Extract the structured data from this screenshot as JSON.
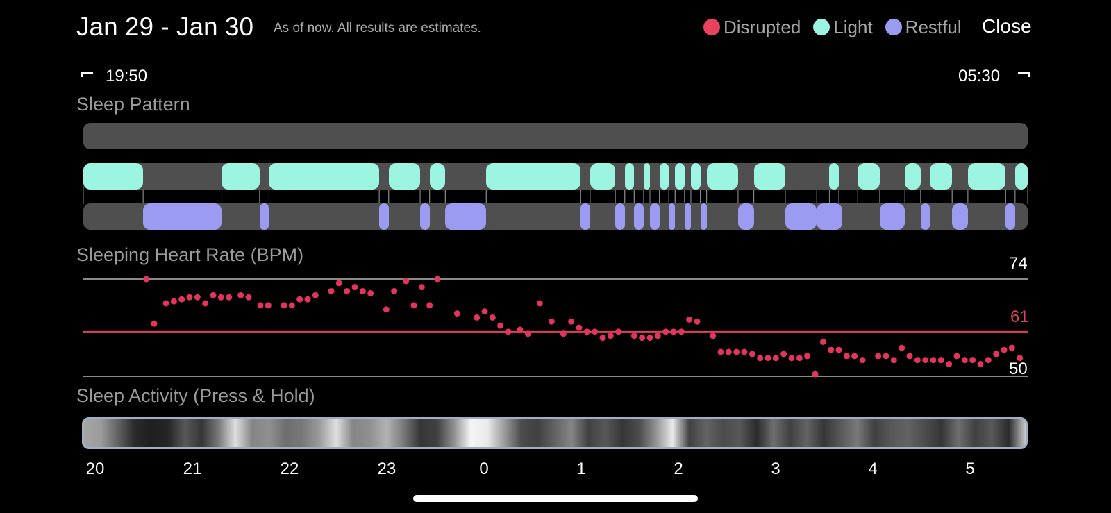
{
  "header": {
    "title": "Jan 29 - Jan 30",
    "subtitle": "As of now. All results are estimates.",
    "close_label": "Close"
  },
  "legend": [
    {
      "label": "Disrupted",
      "color": "#e9415e"
    },
    {
      "label": "Light",
      "color": "#9cf5e1"
    },
    {
      "label": "Restful",
      "color": "#9b9cf1"
    }
  ],
  "time_range": {
    "start": "19:50",
    "end": "05:30"
  },
  "sleep_pattern": {
    "title": "Sleep Pattern",
    "stages": [
      "disrupted",
      "light",
      "restful"
    ],
    "segments_minutes": [
      {
        "stage": "light",
        "start": 0,
        "end": 19
      },
      {
        "stage": "restful",
        "start": 19,
        "end": 44
      },
      {
        "stage": "light",
        "start": 44,
        "end": 56
      },
      {
        "stage": "restful",
        "start": 56,
        "end": 59
      },
      {
        "stage": "light",
        "start": 59,
        "end": 94
      },
      {
        "stage": "restful",
        "start": 94,
        "end": 97
      },
      {
        "stage": "light",
        "start": 97,
        "end": 107
      },
      {
        "stage": "restful",
        "start": 107,
        "end": 110
      },
      {
        "stage": "light",
        "start": 110,
        "end": 115
      },
      {
        "stage": "restful",
        "start": 115,
        "end": 128
      },
      {
        "stage": "light",
        "start": 128,
        "end": 158
      },
      {
        "stage": "restful",
        "start": 158,
        "end": 161
      },
      {
        "stage": "light",
        "start": 161,
        "end": 169
      },
      {
        "stage": "restful",
        "start": 169,
        "end": 172
      },
      {
        "stage": "light",
        "start": 172,
        "end": 175
      },
      {
        "stage": "restful",
        "start": 175,
        "end": 178
      },
      {
        "stage": "light",
        "start": 178,
        "end": 180
      },
      {
        "stage": "restful",
        "start": 180,
        "end": 183
      },
      {
        "stage": "light",
        "start": 183,
        "end": 186
      },
      {
        "stage": "restful",
        "start": 186,
        "end": 188
      },
      {
        "stage": "light",
        "start": 188,
        "end": 191
      },
      {
        "stage": "restful",
        "start": 191,
        "end": 193
      },
      {
        "stage": "light",
        "start": 193,
        "end": 196
      },
      {
        "stage": "restful",
        "start": 196,
        "end": 198
      },
      {
        "stage": "light",
        "start": 198,
        "end": 208
      },
      {
        "stage": "restful",
        "start": 208,
        "end": 213
      },
      {
        "stage": "light",
        "start": 213,
        "end": 223
      },
      {
        "stage": "restful",
        "start": 223,
        "end": 233
      },
      {
        "stage": "restful",
        "start": 233,
        "end": 241
      },
      {
        "stage": "light",
        "start": 237,
        "end": 240
      },
      {
        "stage": "light",
        "start": 246,
        "end": 253
      },
      {
        "stage": "restful",
        "start": 253,
        "end": 261
      },
      {
        "stage": "light",
        "start": 261,
        "end": 266
      },
      {
        "stage": "restful",
        "start": 266,
        "end": 269
      },
      {
        "stage": "light",
        "start": 269,
        "end": 276
      },
      {
        "stage": "restful",
        "start": 276,
        "end": 281
      },
      {
        "stage": "light",
        "start": 281,
        "end": 293
      },
      {
        "stage": "restful",
        "start": 293,
        "end": 296
      },
      {
        "stage": "light",
        "start": 296,
        "end": 300
      }
    ]
  },
  "heart_rate": {
    "title": "Sleeping Heart Rate (BPM)",
    "max_label": "74",
    "avg_label": "61",
    "min_label": "50",
    "colors": {
      "dot": "#e3345a",
      "avg_line": "#e0415e",
      "grid": "#8a8a8a"
    },
    "ylim": [
      50,
      74
    ],
    "points_minutes_bpm": [
      [
        16,
        74
      ],
      [
        18,
        63
      ],
      [
        21,
        68
      ],
      [
        23,
        68.5
      ],
      [
        25,
        69
      ],
      [
        27,
        69.5
      ],
      [
        29,
        69.5
      ],
      [
        31,
        68
      ],
      [
        33,
        70
      ],
      [
        35,
        69.5
      ],
      [
        37,
        69.5
      ],
      [
        40,
        70
      ],
      [
        42,
        69.5
      ],
      [
        45,
        67.5
      ],
      [
        47,
        67.5
      ],
      [
        51,
        67.5
      ],
      [
        53,
        67.5
      ],
      [
        55,
        69
      ],
      [
        57,
        69
      ],
      [
        59,
        70
      ],
      [
        63,
        71
      ],
      [
        65,
        73
      ],
      [
        67,
        71
      ],
      [
        69,
        72
      ],
      [
        71,
        71
      ],
      [
        73,
        70.5
      ],
      [
        77,
        66.5
      ],
      [
        79,
        71
      ],
      [
        82,
        73.5
      ],
      [
        84,
        67.5
      ],
      [
        86,
        72
      ],
      [
        88,
        67.5
      ],
      [
        90,
        74
      ],
      [
        95,
        65.5
      ],
      [
        100,
        64.5
      ],
      [
        102,
        66
      ],
      [
        104,
        64.5
      ],
      [
        106,
        62.5
      ],
      [
        108,
        61
      ],
      [
        111,
        61.5
      ],
      [
        113,
        60.5
      ],
      [
        116,
        68
      ],
      [
        119,
        63.5
      ],
      [
        122,
        60.5
      ],
      [
        124,
        63.5
      ],
      [
        126,
        62
      ],
      [
        128,
        61
      ],
      [
        130,
        61
      ],
      [
        132,
        59.5
      ],
      [
        134,
        60
      ],
      [
        136,
        61
      ],
      [
        140,
        60
      ],
      [
        142,
        59.5
      ],
      [
        144,
        59.5
      ],
      [
        146,
        60
      ],
      [
        148,
        61
      ],
      [
        150,
        61
      ],
      [
        152,
        61
      ],
      [
        154,
        64
      ],
      [
        156,
        63.5
      ],
      [
        160,
        60
      ],
      [
        162,
        56
      ],
      [
        164,
        56
      ],
      [
        166,
        56
      ],
      [
        168,
        56
      ],
      [
        170,
        55.5
      ],
      [
        172,
        54.5
      ],
      [
        174,
        54.5
      ],
      [
        176,
        54.5
      ],
      [
        178,
        55.5
      ],
      [
        180,
        54.5
      ],
      [
        182,
        54.5
      ],
      [
        184,
        55
      ],
      [
        186,
        50.5
      ],
      [
        188,
        58.5
      ],
      [
        190,
        56.5
      ],
      [
        192,
        56.5
      ],
      [
        194,
        55
      ],
      [
        196,
        55
      ],
      [
        198,
        54
      ],
      [
        202,
        55
      ],
      [
        204,
        55
      ],
      [
        206,
        54
      ],
      [
        208,
        57
      ],
      [
        210,
        55
      ],
      [
        212,
        54
      ],
      [
        214,
        54
      ],
      [
        216,
        54
      ],
      [
        218,
        54
      ],
      [
        220,
        53
      ],
      [
        222,
        55
      ],
      [
        224,
        54
      ],
      [
        226,
        54
      ],
      [
        228,
        53
      ],
      [
        230,
        54
      ],
      [
        232,
        55.5
      ],
      [
        234,
        56.5
      ],
      [
        236,
        57
      ],
      [
        238,
        54.5
      ]
    ]
  },
  "sleep_activity": {
    "title": "Sleep Activity (Press & Hold)",
    "hour_labels": [
      "20",
      "21",
      "22",
      "23",
      "0",
      "1",
      "2",
      "3",
      "4",
      "5"
    ],
    "intensity": [
      0.65,
      0.6,
      0.35,
      0.1,
      0.05,
      0.08,
      0.3,
      0.15,
      0.45,
      0.9,
      0.5,
      0.55,
      0.4,
      0.45,
      0.6,
      0.9,
      0.5,
      0.55,
      0.7,
      0.45,
      0.15,
      0.2,
      0.55,
      1.0,
      0.95,
      0.6,
      0.25,
      0.2,
      0.35,
      0.5,
      0.2,
      0.3,
      0.15,
      0.25,
      0.55,
      0.95,
      0.2,
      0.35,
      0.25,
      0.3,
      0.1,
      0.4,
      0.2,
      0.35,
      0.15,
      0.3,
      0.45,
      0.2,
      0.3,
      0.35,
      0.25,
      0.15,
      0.4,
      0.2,
      0.3,
      0.1,
      0.8
    ]
  }
}
